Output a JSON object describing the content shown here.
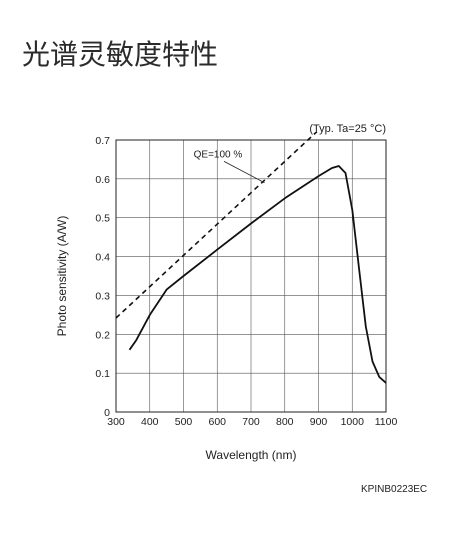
{
  "page": {
    "heading": "光谱灵敏度特性",
    "figure_code": "KPINB0223EC"
  },
  "chart_data": {
    "type": "line",
    "condition_note": "(Typ. Ta=25 °C)",
    "xlabel": "Wavelength (nm)",
    "ylabel": "Photo sensitivity (A/W)",
    "xlim": [
      300,
      1100
    ],
    "ylim": [
      0,
      0.7
    ],
    "xticks": [
      300,
      400,
      500,
      600,
      700,
      800,
      900,
      1000,
      1100
    ],
    "yticks": [
      0,
      0.1,
      0.2,
      0.3,
      0.4,
      0.5,
      0.6,
      0.7
    ],
    "xtick_labels": [
      "300",
      "400",
      "500",
      "600",
      "700",
      "800",
      "900",
      "1000",
      "1100"
    ],
    "ytick_labels": [
      "0",
      "0.1",
      "0.2",
      "0.3",
      "0.4",
      "0.5",
      "0.6",
      "0.7"
    ],
    "grid": true,
    "series": [
      {
        "label": "",
        "style": "solid",
        "x": [
          340,
          360,
          400,
          450,
          500,
          600,
          700,
          800,
          900,
          940,
          960,
          980,
          1000,
          1020,
          1040,
          1060,
          1080,
          1100
        ],
        "y": [
          0.16,
          0.185,
          0.25,
          0.315,
          0.35,
          0.418,
          0.485,
          0.55,
          0.607,
          0.628,
          0.633,
          0.615,
          0.52,
          0.37,
          0.22,
          0.13,
          0.09,
          0.075
        ]
      },
      {
        "label": "QE=100 %",
        "style": "dashed",
        "x": [
          300,
          1000
        ],
        "y": [
          0.242,
          0.806
        ]
      }
    ]
  }
}
